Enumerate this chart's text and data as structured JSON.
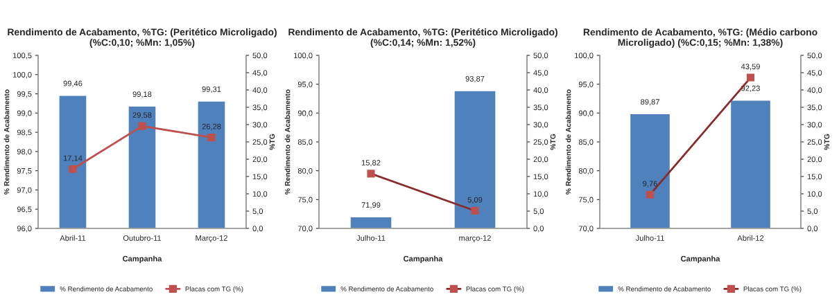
{
  "chart_data": [
    {
      "type": "bar",
      "title": "Rendimento de Acabamento, %TG: (Peritético Microligado)\n(%C:0,10; %Mn: 1,05%)",
      "xlabel": "Campanha",
      "ylabel": "% Rendimento de Acabamento",
      "y2label": "%TG",
      "categories": [
        "Abril-11",
        "Outubro-11",
        "Março-12"
      ],
      "series": [
        {
          "name": "% Rendimento de Acabamento",
          "type": "bar",
          "color": "#4f81bd",
          "values": [
            99.46,
            99.18,
            99.31
          ],
          "value_labels": [
            "99,46",
            "99,18",
            "99,31"
          ]
        },
        {
          "name": "Placas com TG (%)",
          "type": "line",
          "axis": "y2",
          "color": "#c0504d",
          "values": [
            17.14,
            29.58,
            26.28
          ],
          "value_labels": [
            "17,14",
            "29,58",
            "26,28"
          ]
        }
      ],
      "ylim": [
        96.0,
        100.5
      ],
      "yticks": [
        {
          "value": 96.0,
          "label": "96,0"
        },
        {
          "value": 96.5,
          "label": "96,5"
        },
        {
          "value": 97.0,
          "label": "97,0"
        },
        {
          "value": 97.5,
          "label": "97,5"
        },
        {
          "value": 98.0,
          "label": "98,0"
        },
        {
          "value": 98.5,
          "label": "98,5"
        },
        {
          "value": 99.0,
          "label": "99,0"
        },
        {
          "value": 99.5,
          "label": "99,5"
        },
        {
          "value": 100.0,
          "label": "100,0"
        },
        {
          "value": 100.5,
          "label": "100,5"
        }
      ],
      "y2lim": [
        0,
        50
      ],
      "y2ticks": [
        {
          "value": 0,
          "label": "0,0"
        },
        {
          "value": 5,
          "label": "5,0"
        },
        {
          "value": 10,
          "label": "10,0"
        },
        {
          "value": 15,
          "label": "15,0"
        },
        {
          "value": 20,
          "label": "20,0"
        },
        {
          "value": 25,
          "label": "25,0"
        },
        {
          "value": 30,
          "label": "30,0"
        },
        {
          "value": 35,
          "label": "35,0"
        },
        {
          "value": 40,
          "label": "40,0"
        },
        {
          "value": 45,
          "label": "45,0"
        },
        {
          "value": 50,
          "label": "50,0"
        }
      ],
      "legend": "bottom",
      "marker": "square",
      "line_style": "solid",
      "grid": false
    },
    {
      "type": "bar",
      "title": "Rendimento de Acabamento, %TG: (Peritético Microligado)\n(%C:0,14; %Mn: 1,52%)",
      "xlabel": "Campanha",
      "ylabel": "% Rendimento de Acabamento",
      "y2label": "%TG",
      "categories": [
        "Julho-11",
        "março-12"
      ],
      "series": [
        {
          "name": "% Rendimento de Acabamento",
          "type": "bar",
          "color": "#4f81bd",
          "values": [
            71.99,
            93.87
          ],
          "value_labels": [
            "71,99",
            "93,87"
          ]
        },
        {
          "name": "Placas com TG (%)",
          "type": "line",
          "axis": "y2",
          "color": "#8b2a2a",
          "values": [
            15.82,
            5.09
          ],
          "value_labels": [
            "15,82",
            "5,09"
          ]
        }
      ],
      "ylim": [
        70.0,
        100.0
      ],
      "yticks": [
        {
          "value": 70.0,
          "label": "70,0"
        },
        {
          "value": 75.0,
          "label": "75,0"
        },
        {
          "value": 80.0,
          "label": "80,0"
        },
        {
          "value": 85.0,
          "label": "85,0"
        },
        {
          "value": 90.0,
          "label": "90,0"
        },
        {
          "value": 95.0,
          "label": "95,0"
        },
        {
          "value": 100.0,
          "label": "100,0"
        }
      ],
      "y2lim": [
        0,
        50
      ],
      "y2ticks": [
        {
          "value": 0,
          "label": "0,0"
        },
        {
          "value": 5,
          "label": "5,0"
        },
        {
          "value": 10,
          "label": "10,0"
        },
        {
          "value": 15,
          "label": "15,0"
        },
        {
          "value": 20,
          "label": "20,0"
        },
        {
          "value": 25,
          "label": "25,0"
        },
        {
          "value": 30,
          "label": "30,0"
        },
        {
          "value": 35,
          "label": "35,0"
        },
        {
          "value": 40,
          "label": "40,0"
        },
        {
          "value": 45,
          "label": "45,0"
        },
        {
          "value": 50,
          "label": "50,0"
        }
      ],
      "legend": "bottom",
      "marker": "square",
      "line_style": "solid",
      "grid": false
    },
    {
      "type": "bar",
      "title": "Rendimento de Acabamento, %TG: (Médio carbono\nMicroligado) (%C:0,15; %Mn: 1,38%)",
      "xlabel": "Campanha",
      "ylabel": "% Rendimento de Acabamento",
      "y2label": "%TG",
      "categories": [
        "Julho-11",
        "Abril-12"
      ],
      "series": [
        {
          "name": "% Rendimento de Acabamento",
          "type": "bar",
          "color": "#4f81bd",
          "values": [
            89.87,
            92.23
          ],
          "value_labels": [
            "89,87",
            "92,23"
          ]
        },
        {
          "name": "Placas com TG (%)",
          "type": "line",
          "axis": "y2",
          "color": "#8b2a2a",
          "values": [
            9.76,
            43.59
          ],
          "value_labels": [
            "9,76",
            "43,59"
          ]
        }
      ],
      "ylim": [
        70.0,
        100.0
      ],
      "yticks": [
        {
          "value": 70.0,
          "label": "70,0"
        },
        {
          "value": 75.0,
          "label": "75,0"
        },
        {
          "value": 80.0,
          "label": "80,0"
        },
        {
          "value": 85.0,
          "label": "85,0"
        },
        {
          "value": 90.0,
          "label": "90,0"
        },
        {
          "value": 95.0,
          "label": "95,0"
        },
        {
          "value": 100.0,
          "label": "100,0"
        }
      ],
      "y2lim": [
        0,
        50
      ],
      "y2ticks": [
        {
          "value": 0,
          "label": "0,0"
        },
        {
          "value": 5,
          "label": "5,0"
        },
        {
          "value": 10,
          "label": "10,0"
        },
        {
          "value": 15,
          "label": "15,0"
        },
        {
          "value": 20,
          "label": "20,0"
        },
        {
          "value": 25,
          "label": "25,0"
        },
        {
          "value": 30,
          "label": "30,0"
        },
        {
          "value": 35,
          "label": "35,0"
        },
        {
          "value": 40,
          "label": "40,0"
        },
        {
          "value": 45,
          "label": "45,0"
        },
        {
          "value": 50,
          "label": "50,0"
        }
      ],
      "legend": "bottom",
      "marker": "square",
      "line_style": "solid",
      "grid": false
    }
  ]
}
